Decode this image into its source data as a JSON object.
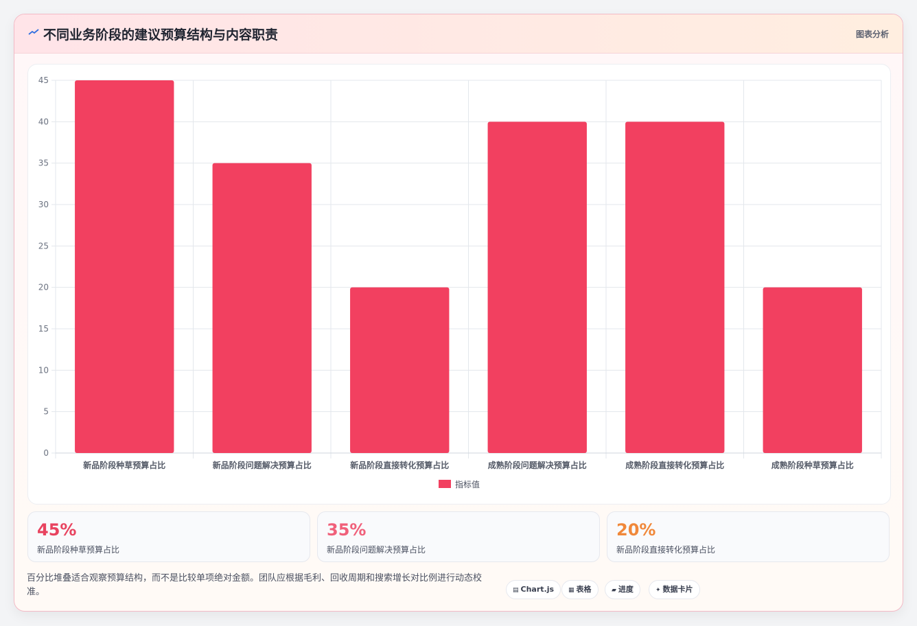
{
  "header": {
    "title": "不同业务阶段的建议预算结构与内容职责",
    "right_label": "图表分析",
    "icon": "trend-line-icon"
  },
  "chart_data": {
    "type": "bar",
    "categories": [
      "新品阶段种草预算占比",
      "新品阶段问题解决预算占比",
      "新品阶段直接转化预算占比",
      "成熟阶段问题解决预算占比",
      "成熟阶段直接转化预算占比",
      "成熟阶段种草预算占比"
    ],
    "series": [
      {
        "name": "指标值",
        "values": [
          45,
          35,
          20,
          40,
          40,
          20
        ],
        "color": "#f24060"
      }
    ],
    "ylim": [
      0,
      45
    ],
    "yticks": [
      0,
      5,
      10,
      15,
      20,
      25,
      30,
      35,
      40,
      45
    ],
    "grid": true,
    "legend": "bottom-center"
  },
  "stats": [
    {
      "value": "45%",
      "label": "新品阶段种草预算占比",
      "color": "#e8435f"
    },
    {
      "value": "35%",
      "label": "新品阶段问题解决预算占比",
      "color": "#f0607a"
    },
    {
      "value": "20%",
      "label": "新品阶段直接转化预算占比",
      "color": "#f0883a"
    }
  ],
  "footer": {
    "note": "百分比堆叠适合观察预算结构，而不是比较单项绝对金额。团队应根据毛利、回收周期和搜索增长对比例进行动态校准。",
    "tags": [
      {
        "icon": "▤",
        "label": "Chart.js"
      },
      {
        "icon": "▦",
        "label": "表格"
      },
      {
        "icon": "▰",
        "label": "进度"
      },
      {
        "icon": "✦",
        "label": "数据卡片"
      }
    ]
  }
}
